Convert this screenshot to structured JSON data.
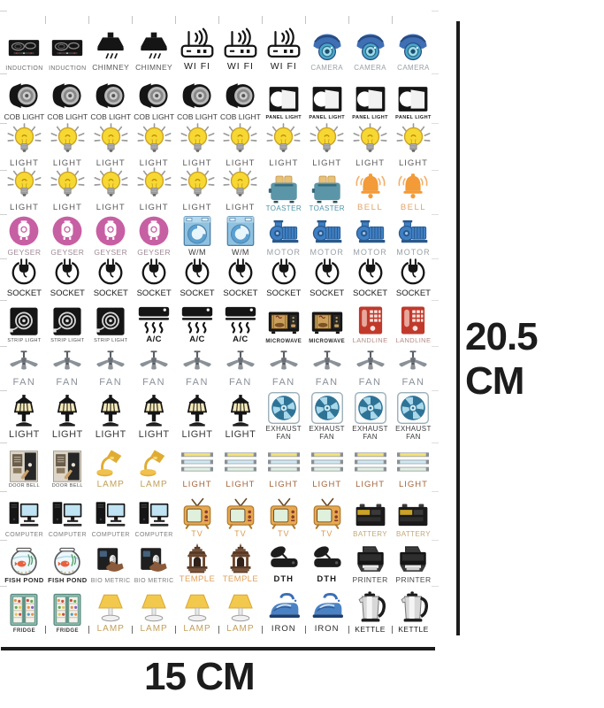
{
  "annotations": {
    "height_label": "20.5 CM",
    "width_label": "15 CM",
    "line_color": "#1c1c1c"
  },
  "sheet": {
    "columns": 10,
    "rows": [
      {
        "groups": [
          {
            "label": "INDUCTION",
            "icon": "induction",
            "count": 2,
            "label_color": "#6e6e6e"
          },
          {
            "label": "CHIMNEY",
            "icon": "chimney",
            "count": 2,
            "label_color": "#585858"
          },
          {
            "label": "WI FI",
            "icon": "wifi",
            "count": 3,
            "label_color": "#1a1a1a"
          },
          {
            "label": "CAMERA",
            "icon": "camera",
            "count": 3,
            "label_color": "#9aa0a6"
          }
        ]
      },
      {
        "groups": [
          {
            "label": "COB LIGHT",
            "icon": "cob-light",
            "count": 6,
            "label_color": "#3a3a3a"
          },
          {
            "label": "PANEL LIGHT",
            "icon": "panel-light",
            "count": 4,
            "label_color": "#1a1a1a"
          }
        ]
      },
      {
        "groups": [
          {
            "label": "LIGHT",
            "icon": "bulb",
            "count": 10,
            "label_color": "#5a5a5a"
          }
        ]
      },
      {
        "groups": [
          {
            "label": "LIGHT",
            "icon": "bulb",
            "count": 6,
            "label_color": "#5a5a5a"
          },
          {
            "label": "TOASTER",
            "icon": "toaster",
            "count": 2,
            "label_color": "#4e93a8"
          },
          {
            "label": "BELL",
            "icon": "bell",
            "count": 2,
            "label_color": "#e0a468"
          }
        ]
      },
      {
        "groups": [
          {
            "label": "GEYSER",
            "icon": "geyser",
            "count": 4,
            "label_color": "#9c8a94"
          },
          {
            "label": "W/M",
            "icon": "washing-machine",
            "count": 2,
            "label_color": "#3a3a3a"
          },
          {
            "label": "MOTOR",
            "icon": "motor",
            "count": 4,
            "label_color": "#9aa0a6"
          }
        ]
      },
      {
        "groups": [
          {
            "label": "SOCKET",
            "icon": "socket",
            "count": 10,
            "label_color": "#1a1a1a"
          }
        ]
      },
      {
        "groups": [
          {
            "label": "STRIP LIGHT",
            "icon": "strip-light",
            "count": 3,
            "label_color": "#4a4a4a"
          },
          {
            "label": "A/C",
            "icon": "ac",
            "count": 3,
            "label_color": "#151515"
          },
          {
            "label": "MICROWAVE",
            "icon": "microwave",
            "count": 2,
            "label_color": "#2a2a2a"
          },
          {
            "label": "LANDLINE",
            "icon": "landline",
            "count": 2,
            "label_color": "#b28c88"
          }
        ]
      },
      {
        "groups": [
          {
            "label": "FAN",
            "icon": "fan",
            "count": 10,
            "label_color": "#8a9099"
          }
        ]
      },
      {
        "groups": [
          {
            "label": "LIGHT",
            "icon": "lantern",
            "count": 6,
            "label_color": "#3a3a3a"
          },
          {
            "label": "EXHAUST FAN",
            "icon": "exhaust-fan",
            "count": 4,
            "label_color": "#3a3a3a"
          }
        ]
      },
      {
        "groups": [
          {
            "label": "DOOR BELL",
            "icon": "door-bell",
            "count": 2,
            "label_color": "#4a4a4a"
          },
          {
            "label": "LAMP",
            "icon": "desk-lamp",
            "count": 2,
            "label_color": "#c2a05a"
          },
          {
            "label": "LIGHT",
            "icon": "tube-light",
            "count": 6,
            "label_color": "#a3643c"
          }
        ]
      },
      {
        "groups": [
          {
            "label": "COMPUTER",
            "icon": "computer",
            "count": 4,
            "label_color": "#7e7e7e"
          },
          {
            "label": "TV",
            "icon": "tv",
            "count": 4,
            "label_color": "#d99a4e"
          },
          {
            "label": "BATTERY",
            "icon": "battery",
            "count": 2,
            "label_color": "#c2a878"
          }
        ]
      },
      {
        "groups": [
          {
            "label": "FISH POND",
            "icon": "fish-pond",
            "count": 2,
            "label_color": "#2a2a2a"
          },
          {
            "label": "BIO METRIC",
            "icon": "biometric",
            "count": 2,
            "label_color": "#7e7e7e"
          },
          {
            "label": "TEMPLE",
            "icon": "temple",
            "count": 2,
            "label_color": "#e0a05a"
          },
          {
            "label": "DTH",
            "icon": "dth",
            "count": 2,
            "label_color": "#1a1a1a"
          },
          {
            "label": "PRINTER",
            "icon": "printer",
            "count": 2,
            "label_color": "#4a4a4a"
          }
        ]
      },
      {
        "separators": true,
        "groups": [
          {
            "label": "FRIDGE",
            "icon": "fridge",
            "count": 2,
            "label_color": "#3a3a3a"
          },
          {
            "label": "LAMP",
            "icon": "table-lamp",
            "count": 4,
            "label_color": "#c2a05a"
          },
          {
            "label": "IRON",
            "icon": "iron",
            "count": 2,
            "label_color": "#2a2a2a"
          },
          {
            "label": "KETTLE",
            "icon": "kettle",
            "count": 2,
            "label_color": "#1a1a1a"
          }
        ]
      }
    ]
  }
}
